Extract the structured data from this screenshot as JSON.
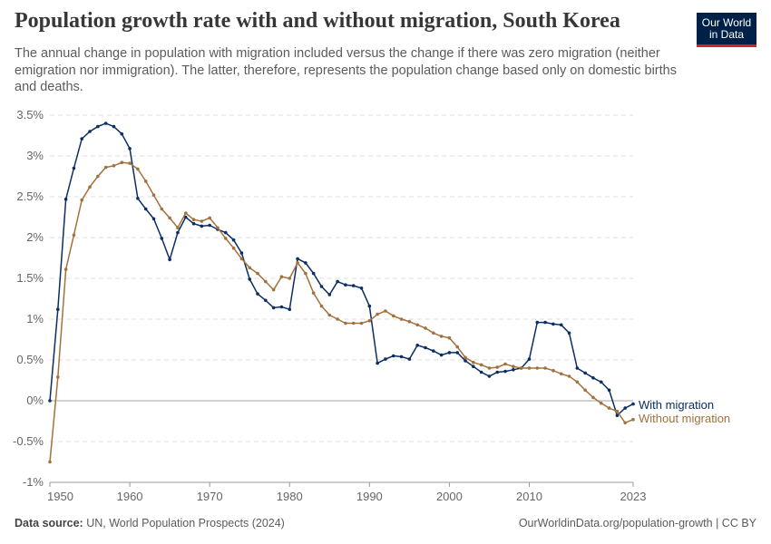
{
  "title": "Population growth rate with and without migration, South Korea",
  "subtitle": "The annual change in population with migration included versus the change if there was zero migration (neither emigration nor immigration). The latter, therefore, represents the population change based only on domestic births and deaths.",
  "logo": {
    "line1": "Our World",
    "line2": "in Data"
  },
  "footer": {
    "source_label": "Data source:",
    "source": "UN, World Population Prospects (2024)",
    "credit": "OurWorldinData.org/population-growth | CC BY"
  },
  "colors": {
    "with": "#0b2e63",
    "without": "#a2713d"
  },
  "chart_data": {
    "type": "line",
    "title": "Population growth rate with and without migration, South Korea",
    "xlabel": "",
    "ylabel": "",
    "ylim": [
      -1,
      3.5
    ],
    "xlim": [
      1950,
      2023
    ],
    "yticks": [
      -1,
      -0.5,
      0,
      0.5,
      1,
      1.5,
      2,
      2.5,
      3,
      3.5
    ],
    "ytick_labels": [
      "-1%",
      "-0.5%",
      "0%",
      "0.5%",
      "1%",
      "1.5%",
      "2%",
      "2.5%",
      "3%",
      "3.5%"
    ],
    "xticks": [
      1950,
      1960,
      1970,
      1980,
      1990,
      2000,
      2010,
      2023
    ],
    "xtick_labels": [
      "1950",
      "1960",
      "1970",
      "1980",
      "1990",
      "2000",
      "2010",
      "2023"
    ],
    "grid": true,
    "legend": "end-of-line labels (right)",
    "x_start": 1950,
    "series": [
      {
        "name": "With migration",
        "values": [
          0,
          1.12,
          2.47,
          2.85,
          3.21,
          3.3,
          3.36,
          3.4,
          3.36,
          3.27,
          3.09,
          2.48,
          2.35,
          2.23,
          1.99,
          1.73,
          2.06,
          2.25,
          2.17,
          2.14,
          2.15,
          2.1,
          2.06,
          1.97,
          1.81,
          1.49,
          1.31,
          1.23,
          1.14,
          1.15,
          1.12,
          1.74,
          1.69,
          1.56,
          1.4,
          1.3,
          1.46,
          1.42,
          1.41,
          1.38,
          1.16,
          0.46,
          0.51,
          0.55,
          0.54,
          0.51,
          0.68,
          0.65,
          0.61,
          0.56,
          0.59,
          0.59,
          0.49,
          0.42,
          0.35,
          0.3,
          0.35,
          0.36,
          0.38,
          0.4,
          0.51,
          0.96,
          0.96,
          0.94,
          0.93,
          0.83,
          0.4,
          0.34,
          0.28,
          0.23,
          0.13,
          -0.18,
          -0.09,
          -0.04
        ]
      },
      {
        "name": "Without migration",
        "values": [
          -0.75,
          0.29,
          1.61,
          2.03,
          2.46,
          2.62,
          2.75,
          2.86,
          2.88,
          2.92,
          2.91,
          2.84,
          2.69,
          2.52,
          2.35,
          2.24,
          2.12,
          2.3,
          2.22,
          2.2,
          2.24,
          2.12,
          1.99,
          1.87,
          1.74,
          1.63,
          1.56,
          1.46,
          1.36,
          1.52,
          1.5,
          1.69,
          1.56,
          1.32,
          1.16,
          1.05,
          1.0,
          0.95,
          0.95,
          0.95,
          0.98,
          1.06,
          1.1,
          1.04,
          1.0,
          0.97,
          0.93,
          0.89,
          0.83,
          0.79,
          0.77,
          0.66,
          0.53,
          0.47,
          0.44,
          0.4,
          0.41,
          0.45,
          0.42,
          0.4,
          0.4,
          0.4,
          0.4,
          0.37,
          0.33,
          0.3,
          0.23,
          0.13,
          0.04,
          -0.03,
          -0.09,
          -0.13,
          -0.27,
          -0.23
        ]
      }
    ]
  }
}
